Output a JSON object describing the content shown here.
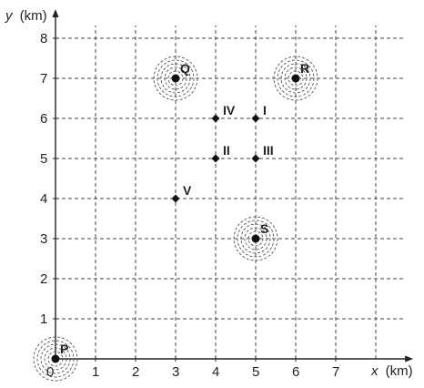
{
  "chart_data": {
    "type": "scatter",
    "title": "",
    "xlabel_var": "x",
    "xlabel_unit": "(km)",
    "ylabel_var": "y",
    "ylabel_unit": "(km)",
    "xlim": [
      0,
      8.8
    ],
    "ylim": [
      0,
      8.5
    ],
    "x_ticks": [
      "0",
      "1",
      "2",
      "3",
      "4",
      "5",
      "6",
      "7"
    ],
    "y_ticks": [
      "1",
      "2",
      "3",
      "4",
      "5",
      "6",
      "7",
      "8"
    ],
    "grid": true,
    "circle_points": [
      {
        "label": "P",
        "x": 0,
        "y": 0
      },
      {
        "label": "Q",
        "x": 3,
        "y": 7
      },
      {
        "label": "R",
        "x": 6,
        "y": 7
      },
      {
        "label": "S",
        "x": 5,
        "y": 3
      }
    ],
    "diamond_points": [
      {
        "label": "I",
        "x": 5,
        "y": 6
      },
      {
        "label": "II",
        "x": 4,
        "y": 5
      },
      {
        "label": "III",
        "x": 5,
        "y": 5
      },
      {
        "label": "IV",
        "x": 4,
        "y": 6
      },
      {
        "label": "V",
        "x": 3,
        "y": 4
      }
    ]
  }
}
